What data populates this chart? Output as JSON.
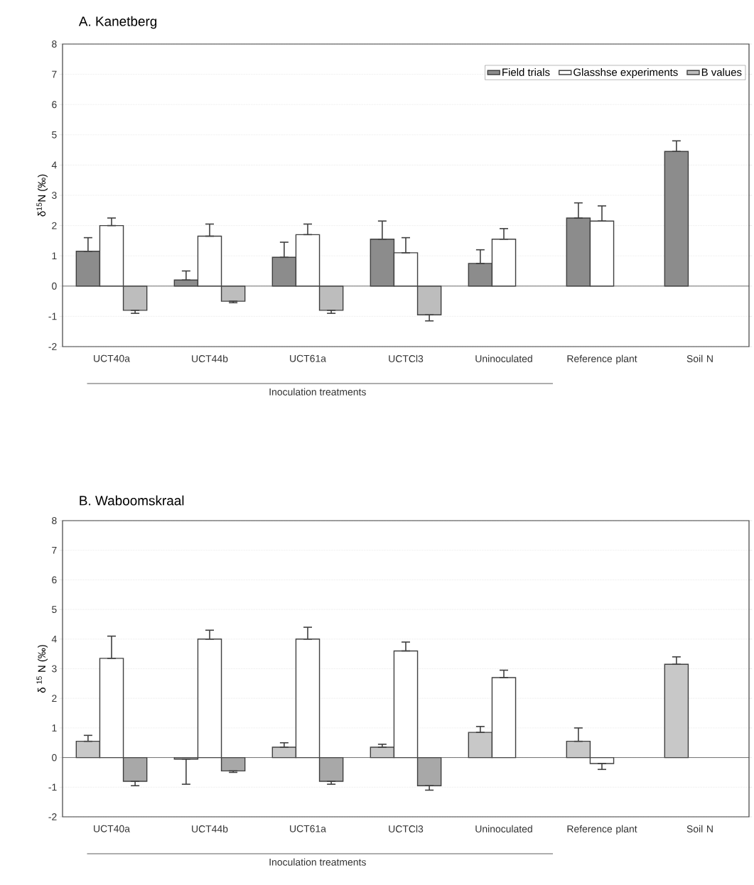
{
  "chart_data": [
    {
      "type": "bar",
      "title": "A. Kanetberg",
      "ylabel": "δ$^{15}$N (‰)",
      "categories": [
        "UCT40a",
        "UCT44b",
        "UCT61a",
        "UCTCl3",
        "Uninoculated",
        "Reference plant",
        "Soil N"
      ],
      "series": [
        {
          "name": "Field trials",
          "color": "#8c8c8c",
          "values": [
            1.15,
            0.2,
            0.95,
            1.55,
            0.75,
            2.25,
            4.45
          ],
          "errors": [
            [
              1.15,
              1.6
            ],
            [
              0.2,
              0.5
            ],
            [
              0.95,
              1.45
            ],
            [
              1.55,
              2.15
            ],
            [
              0.75,
              1.2
            ],
            [
              2.25,
              2.75
            ],
            [
              4.45,
              4.8
            ]
          ]
        },
        {
          "name": "Glasshse experiments",
          "color": "#ffffff",
          "values": [
            2.0,
            1.65,
            1.7,
            1.1,
            1.55,
            2.15,
            null
          ],
          "errors": [
            [
              2.0,
              2.25
            ],
            [
              1.65,
              2.05
            ],
            [
              1.7,
              2.05
            ],
            [
              1.1,
              1.6
            ],
            [
              1.55,
              1.9
            ],
            [
              2.15,
              2.65
            ],
            null
          ]
        },
        {
          "name": "B values",
          "color": "#bdbdbd",
          "values": [
            -0.8,
            -0.5,
            -0.8,
            -0.95,
            null,
            null,
            null
          ],
          "errors": [
            [
              -0.9,
              -0.8
            ],
            [
              -0.55,
              -0.5
            ],
            [
              -0.9,
              -0.8
            ],
            [
              -1.15,
              -0.95
            ],
            null,
            null,
            null
          ]
        }
      ],
      "ylim": [
        -2,
        8
      ],
      "yticks": [
        -2,
        -1,
        0,
        1,
        2,
        3,
        4,
        5,
        6,
        7,
        8
      ],
      "grid": "y",
      "legend": "top right",
      "annotations": [
        "Inoculation treatments"
      ]
    },
    {
      "type": "bar",
      "title": "B. Waboomskraal",
      "ylabel": "δ $^{15}$ N (‰)",
      "categories": [
        "UCT40a",
        "UCT44b",
        "UCT61a",
        "UCTCl3",
        "Uninoculated",
        "Reference plant",
        "Soil N"
      ],
      "series": [
        {
          "color": "#c8c8c8",
          "values": [
            0.55,
            -0.05,
            0.35,
            0.35,
            0.85,
            0.55,
            3.15
          ],
          "errors": [
            [
              0.55,
              0.75
            ],
            [
              -0.9,
              -0.05
            ],
            [
              0.35,
              0.5
            ],
            [
              0.35,
              0.45
            ],
            [
              0.85,
              1.05
            ],
            [
              0.55,
              1.0
            ],
            [
              3.15,
              3.4
            ]
          ]
        },
        {
          "color": "#ffffff",
          "values": [
            3.35,
            4.0,
            4.0,
            3.6,
            2.7,
            -0.2,
            null
          ],
          "errors": [
            [
              3.35,
              4.1
            ],
            [
              4.0,
              4.3
            ],
            [
              4.0,
              4.4
            ],
            [
              3.6,
              3.9
            ],
            [
              2.7,
              2.95
            ],
            [
              -0.4,
              -0.2
            ],
            null
          ]
        },
        {
          "color": "#a8a8a8",
          "values": [
            -0.8,
            -0.45,
            -0.8,
            -0.95,
            null,
            null,
            null
          ],
          "errors": [
            [
              -0.95,
              -0.8
            ],
            [
              -0.5,
              -0.45
            ],
            [
              -0.9,
              -0.8
            ],
            [
              -1.1,
              -0.95
            ],
            null,
            null,
            null
          ]
        }
      ],
      "ylim": [
        -2,
        8
      ],
      "yticks": [
        -2,
        -1,
        0,
        1,
        2,
        3,
        4,
        5,
        6,
        7,
        8
      ],
      "grid": "y",
      "legend": false,
      "annotations": [
        "Inoculation treatments"
      ]
    }
  ]
}
